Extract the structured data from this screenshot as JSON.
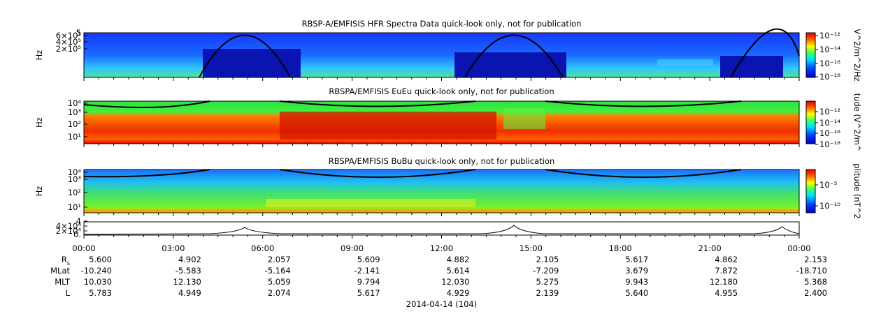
{
  "panels": [
    {
      "title": "RBSP-A/EMFISIS  HFR Spectra Data quick-look only, not for publication",
      "ylabel": "Hz",
      "yticks": [
        "5",
        "6×10⁵",
        "4×10⁵",
        "2×10⁵"
      ],
      "colorbar_label": "V^2/m^2/Hz",
      "colorbar_ticks": [
        "10⁻¹²",
        "10⁻¹⁴",
        "10⁻¹⁶",
        "10⁻¹⁸"
      ]
    },
    {
      "title": "RBSPA/EMFISIS  EuEu quick-look only, not for publication",
      "ylabel": "Hz",
      "yticks": [
        "10⁴",
        "10³",
        "10²",
        "10¹"
      ],
      "colorbar_label": "tude (V^2/m^",
      "colorbar_ticks": [
        "10⁻¹²",
        "10⁻¹⁴",
        "10⁻¹⁶",
        "10⁻¹⁸"
      ]
    },
    {
      "title": "RBSPA/EMFISIS  BuBu quick-look only, not for publication",
      "ylabel": "Hz",
      "yticks": [
        "10⁴",
        "10³",
        "10²",
        "10¹"
      ],
      "colorbar_label": "plitude (nT^2",
      "colorbar_ticks": [
        "10⁻⁵",
        "10⁻¹⁰"
      ]
    },
    {
      "yticks": [
        "4",
        "4×10⁴",
        "2×10⁴",
        "0."
      ]
    }
  ],
  "xticks": [
    "00:00",
    "03:00",
    "06:00",
    "09:00",
    "12:00",
    "15:00",
    "18:00",
    "21:00",
    "00:00"
  ],
  "ephemeris": [
    {
      "label": "R",
      "sub": "s",
      "values": [
        "5.600",
        "4.902",
        "2.057",
        "5.609",
        "4.882",
        "2.105",
        "5.617",
        "4.862",
        "2.153"
      ]
    },
    {
      "label": "MLat",
      "values": [
        "-10.240",
        "-5.583",
        "-5.164",
        "-2.141",
        "5.614",
        "-7.209",
        "3.679",
        "7.872",
        "-18.710"
      ]
    },
    {
      "label": "MLT",
      "values": [
        "10.030",
        "12.130",
        "5.059",
        "9.794",
        "12.030",
        "5.275",
        "9.943",
        "12.180",
        "5.368"
      ]
    },
    {
      "label": "L",
      "values": [
        "5.783",
        "4.949",
        "2.074",
        "5.617",
        "4.929",
        "2.139",
        "5.640",
        "4.955",
        "2.400"
      ]
    }
  ],
  "date": "2014-04-14 (104)"
}
